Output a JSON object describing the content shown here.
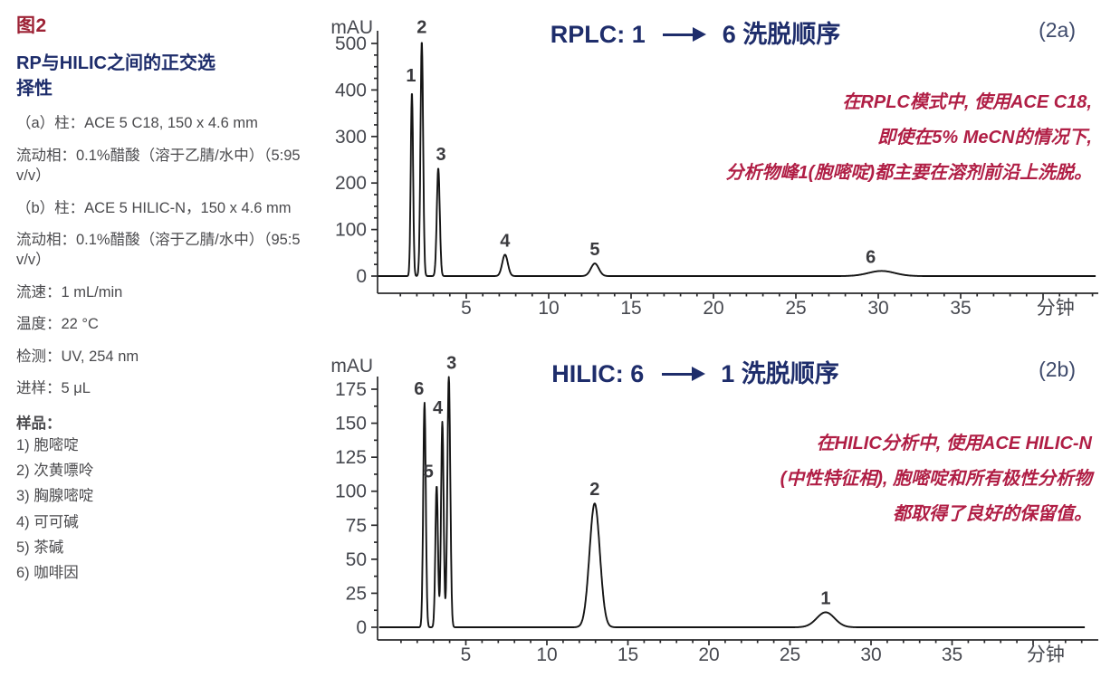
{
  "sidebar": {
    "figure_label": "图2",
    "title_lines": [
      "RP与HILIC之间的正交选",
      "择性"
    ],
    "conditions": [
      "（a）柱：ACE 5 C18, 150 x 4.6 mm",
      "流动相：0.1%醋酸（溶于乙腈/水中）（5:95 v/v）",
      "（b）柱：ACE 5 HILIC-N，150 x 4.6 mm",
      "流动相：0.1%醋酸（溶于乙腈/水中）（95:5 v/v）",
      "流速：1 mL/min",
      "温度：22 °C",
      "检测：UV, 254 nm",
      "进样：5 μL"
    ],
    "sample_heading": "样品：",
    "samples": [
      "1) 胞嘧啶",
      "2) 次黄嘌呤",
      "3) 胸腺嘧啶",
      "4) 可可碱",
      "5) 茶碱",
      "6) 咖啡因"
    ]
  },
  "colors": {
    "navy": "#1e2d6b",
    "crimson": "#9d2235",
    "annotation_red": "#b01e45",
    "trace_black": "#141414",
    "axis_gray": "#2a2a2c"
  },
  "chart_data": [
    {
      "type": "line",
      "panel": "2a",
      "title_prefix": "RPLC: 1",
      "title_suffix": "6 洗脱顺序",
      "corner_label": "(2a)",
      "ylabel": "mAU",
      "xlabel": "分钟",
      "ylim": [
        0,
        530
      ],
      "yticks": [
        0,
        100,
        200,
        300,
        400,
        500
      ],
      "yminor_step": 25,
      "xlim": [
        0,
        43
      ],
      "xtick_labels": [
        5,
        10,
        15,
        20,
        25,
        30,
        35
      ],
      "xminor_step": 1,
      "grid": false,
      "legend": "none",
      "annotation_lines": [
        "在RPLC模式中, 使用ACE C18,",
        "即使在5% MeCN的情况下,",
        "分析物峰1(胞嘧啶)都主要在溶剂前沿上洗脱。"
      ],
      "peaks": [
        {
          "label": "1",
          "t_min": 1.7,
          "height_mau": 395,
          "sigma": 0.07,
          "label_dx": -1,
          "label_dy": 12
        },
        {
          "label": "2",
          "t_min": 2.3,
          "height_mau": 505,
          "sigma": 0.08,
          "label_dx": 0,
          "label_dy": 9
        },
        {
          "label": "3",
          "t_min": 3.3,
          "height_mau": 232,
          "sigma": 0.09,
          "label_dx": 3,
          "label_dy": 9
        },
        {
          "label": "4",
          "t_min": 7.35,
          "height_mau": 46,
          "sigma": 0.17,
          "label_dx": 0,
          "label_dy": 9
        },
        {
          "label": "5",
          "t_min": 12.8,
          "height_mau": 27,
          "sigma": 0.24,
          "label_dx": 0,
          "label_dy": 9
        },
        {
          "label": "6",
          "t_min": 30.2,
          "height_mau": 11,
          "sigma": 0.8,
          "label_dx": -12,
          "label_dy": 9
        }
      ]
    },
    {
      "type": "line",
      "panel": "2b",
      "title_prefix": "HILIC: 6",
      "title_suffix": "1 洗脱顺序",
      "corner_label": "(2b)",
      "ylabel": "mAU",
      "xlabel": "分钟",
      "ylim": [
        0,
        195
      ],
      "yticks": [
        0,
        25,
        50,
        75,
        100,
        125,
        150,
        175
      ],
      "yminor_step": 12.5,
      "xlim": [
        0,
        43
      ],
      "xtick_labels": [
        5,
        10,
        15,
        20,
        25,
        30,
        35
      ],
      "xminor_step": 1,
      "grid": false,
      "legend": "none",
      "annotation_lines": [
        "在HILIC分析中, 使用ACE HILIC-N",
        "(中性特征相), 胞嘧啶和所有极性分析物",
        "都取得了良好的保留值。"
      ],
      "peaks": [
        {
          "label": "6",
          "t_min": 2.45,
          "height_mau": 165,
          "sigma": 0.08,
          "label_dx": -6,
          "label_dy": 9
        },
        {
          "label": "5",
          "t_min": 3.2,
          "height_mau": 104,
          "sigma": 0.08,
          "label_dx": -9,
          "label_dy": 9
        },
        {
          "label": "4",
          "t_min": 3.55,
          "height_mau": 151,
          "sigma": 0.08,
          "label_dx": -5,
          "label_dy": 9
        },
        {
          "label": "3",
          "t_min": 3.95,
          "height_mau": 184,
          "sigma": 0.09,
          "label_dx": 3,
          "label_dy": 9
        },
        {
          "label": "2",
          "t_min": 12.95,
          "height_mau": 91,
          "sigma": 0.32,
          "label_dx": 0,
          "label_dy": 9
        },
        {
          "label": "1",
          "t_min": 27.2,
          "height_mau": 11,
          "sigma": 0.55,
          "label_dx": 0,
          "label_dy": 9
        }
      ]
    }
  ]
}
